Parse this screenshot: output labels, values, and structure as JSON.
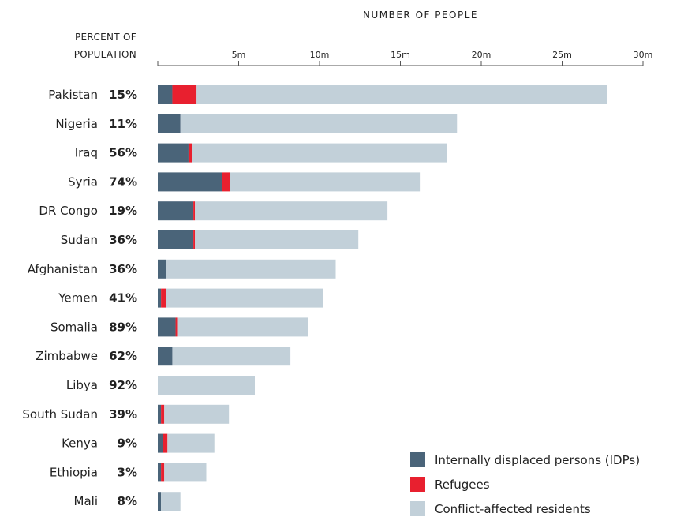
{
  "chart_data": {
    "type": "bar",
    "stacked": true,
    "orientation": "horizontal",
    "xlabel": "NUMBER OF PEOPLE",
    "row_header": [
      "PERCENT OF",
      "POPULATION"
    ],
    "xlim": [
      0,
      30
    ],
    "ticks": [
      {
        "value": 5,
        "label": "5m"
      },
      {
        "value": 10,
        "label": "10m"
      },
      {
        "value": 15,
        "label": "15m"
      },
      {
        "value": 20,
        "label": "20m"
      },
      {
        "value": 25,
        "label": "25m"
      },
      {
        "value": 30,
        "label": "30m"
      }
    ],
    "categories": [
      "Pakistan",
      "Nigeria",
      "Iraq",
      "Syria",
      "DR Congo",
      "Sudan",
      "Afghanistan",
      "Yemen",
      "Somalia",
      "Zimbabwe",
      "Libya",
      "South Sudan",
      "Kenya",
      "Ethiopia",
      "Mali"
    ],
    "percent_of_population": [
      "15%",
      "11%",
      "56%",
      "74%",
      "19%",
      "36%",
      "36%",
      "41%",
      "89%",
      "62%",
      "92%",
      "39%",
      "9%",
      "3%",
      "8%"
    ],
    "series": [
      {
        "name": "Internally displaced persons (IDPs)",
        "color": "#4a6479",
        "values": [
          0.9,
          1.4,
          1.9,
          4.0,
          2.2,
          2.2,
          0.5,
          0.2,
          1.1,
          0.9,
          0,
          0.2,
          0.3,
          0.2,
          0.2
        ]
      },
      {
        "name": "Refugees",
        "color": "#e8202f",
        "values": [
          1.5,
          0,
          0.2,
          0.45,
          0.1,
          0.1,
          0,
          0.3,
          0.1,
          0,
          0,
          0.2,
          0.3,
          0.2,
          0
        ]
      },
      {
        "name": "Conflict-affected residents",
        "color": "#c2d0d9",
        "values": [
          25.4,
          17.1,
          15.8,
          11.8,
          11.9,
          10.1,
          10.5,
          9.7,
          8.1,
          7.3,
          6.0,
          4.0,
          2.9,
          2.6,
          1.2
        ]
      }
    ],
    "legend_position": "bottom-right",
    "grid": false
  }
}
